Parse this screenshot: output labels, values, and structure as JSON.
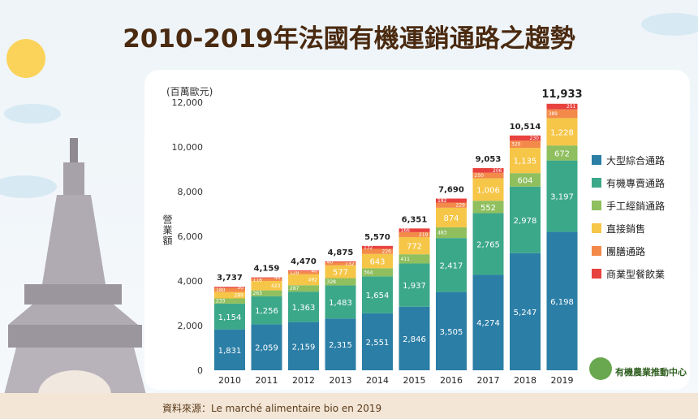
{
  "title": "2010-2019年法國有機運銷通路之趨勢",
  "source": "資料來源：Le marché alimentaire bio en 2019",
  "logo_text": "有機農業推動中心",
  "chart_data": {
    "type": "bar",
    "stacked": true,
    "title": "2010-2019年法國有機運銷通路之趨勢",
    "ylabel": "營業額",
    "yunit": "(百萬歐元)",
    "ylim": [
      0,
      12000
    ],
    "yticks": [
      0,
      2000,
      4000,
      6000,
      8000,
      10000,
      12000
    ],
    "grid": false,
    "legend_position": "right",
    "categories": [
      "2010",
      "2011",
      "2012",
      "2013",
      "2014",
      "2015",
      "2016",
      "2017",
      "2018",
      "2019"
    ],
    "totals": [
      3737,
      4159,
      4470,
      4875,
      5570,
      6351,
      7690,
      9053,
      10514,
      11933
    ],
    "series": [
      {
        "name": "大型綜合通路",
        "color": "#2b7ea6",
        "values": [
          1831,
          2059,
          2159,
          2315,
          2551,
          2846,
          3505,
          4274,
          5247,
          6198
        ]
      },
      {
        "name": "有機專賣通路",
        "color": "#3ca88a",
        "values": [
          1154,
          1256,
          1363,
          1483,
          1654,
          1937,
          2417,
          2765,
          2978,
          3197
        ]
      },
      {
        "name": "手工經銷通路",
        "color": "#8fbf5f",
        "values": [
          233,
          263,
          287,
          328,
          364,
          411,
          483,
          552,
          604,
          672
        ]
      },
      {
        "name": "直接銷售",
        "color": "#f6c648",
        "values": [
          289,
          423,
          492,
          577,
          643,
          772,
          874,
          1006,
          1135,
          1228
        ]
      },
      {
        "name": "團膳通路",
        "color": "#f38a4a",
        "values": [
          180,
          118,
          129,
          132,
          226,
          219,
          229,
          250,
          320,
          389
        ]
      },
      {
        "name": "商業型餐飲業",
        "color": "#e8423e",
        "values": [
          50,
          40,
          40,
          40,
          132,
          166,
          182,
          206,
          230,
          251
        ]
      }
    ]
  }
}
